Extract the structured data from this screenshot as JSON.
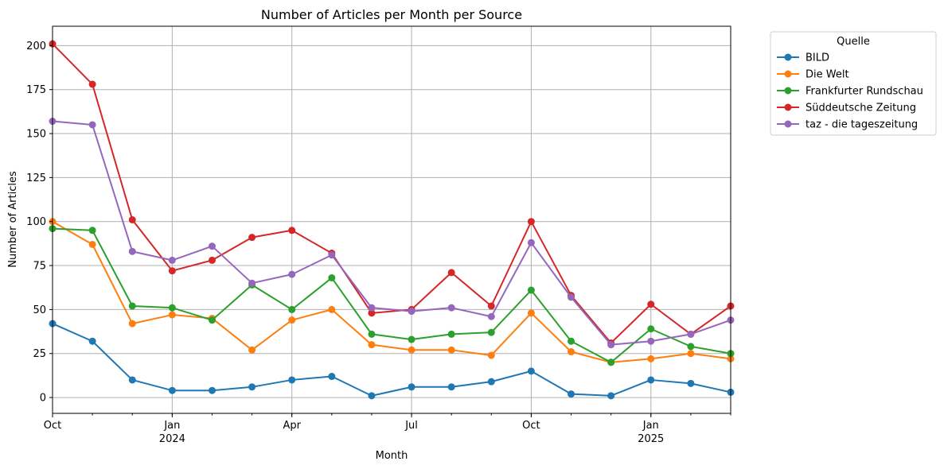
{
  "chart_data": {
    "type": "line",
    "title": "Number of Articles per Month per Source",
    "xlabel": "Month",
    "ylabel": "Number of Articles",
    "ylim": [
      -9,
      211
    ],
    "yticks": [
      0,
      25,
      50,
      75,
      100,
      125,
      150,
      175,
      200
    ],
    "x": [
      "2023-10",
      "2023-11",
      "2023-12",
      "2024-01",
      "2024-02",
      "2024-03",
      "2024-04",
      "2024-05",
      "2024-06",
      "2024-07",
      "2024-08",
      "2024-09",
      "2024-10",
      "2024-11",
      "2024-12",
      "2025-01",
      "2025-02",
      "2025-03"
    ],
    "xtick_labels": [
      {
        "index": 0,
        "line1": "Oct",
        "line2": ""
      },
      {
        "index": 3,
        "line1": "Jan",
        "line2": "2024"
      },
      {
        "index": 6,
        "line1": "Apr",
        "line2": ""
      },
      {
        "index": 9,
        "line1": "Jul",
        "line2": ""
      },
      {
        "index": 12,
        "line1": "Oct",
        "line2": ""
      },
      {
        "index": 15,
        "line1": "Jan",
        "line2": "2025"
      }
    ],
    "grid": true,
    "legend": {
      "title": "Quelle",
      "placement": "outside-top-right"
    },
    "series": [
      {
        "name": "BILD",
        "color": "#1f77b4",
        "values": [
          42,
          32,
          10,
          4,
          4,
          6,
          10,
          12,
          1,
          6,
          6,
          9,
          15,
          2,
          1,
          10,
          8,
          3
        ]
      },
      {
        "name": "Die Welt",
        "color": "#ff7f0e",
        "values": [
          100,
          87,
          42,
          47,
          45,
          27,
          44,
          50,
          30,
          27,
          27,
          24,
          48,
          26,
          20,
          22,
          25,
          22
        ]
      },
      {
        "name": "Frankfurter Rundschau",
        "color": "#2ca02c",
        "values": [
          96,
          95,
          52,
          51,
          44,
          64,
          50,
          68,
          36,
          33,
          36,
          37,
          61,
          32,
          20,
          39,
          29,
          25
        ]
      },
      {
        "name": "Süddeutsche Zeitung",
        "color": "#d62728",
        "values": [
          201,
          178,
          101,
          72,
          78,
          91,
          95,
          82,
          48,
          50,
          71,
          52,
          100,
          58,
          31,
          53,
          36,
          52
        ]
      },
      {
        "name": "taz - die tageszeitung",
        "color": "#9467bd",
        "values": [
          157,
          155,
          83,
          78,
          86,
          65,
          70,
          81,
          51,
          49,
          51,
          46,
          88,
          57,
          30,
          32,
          36,
          44
        ]
      }
    ]
  }
}
